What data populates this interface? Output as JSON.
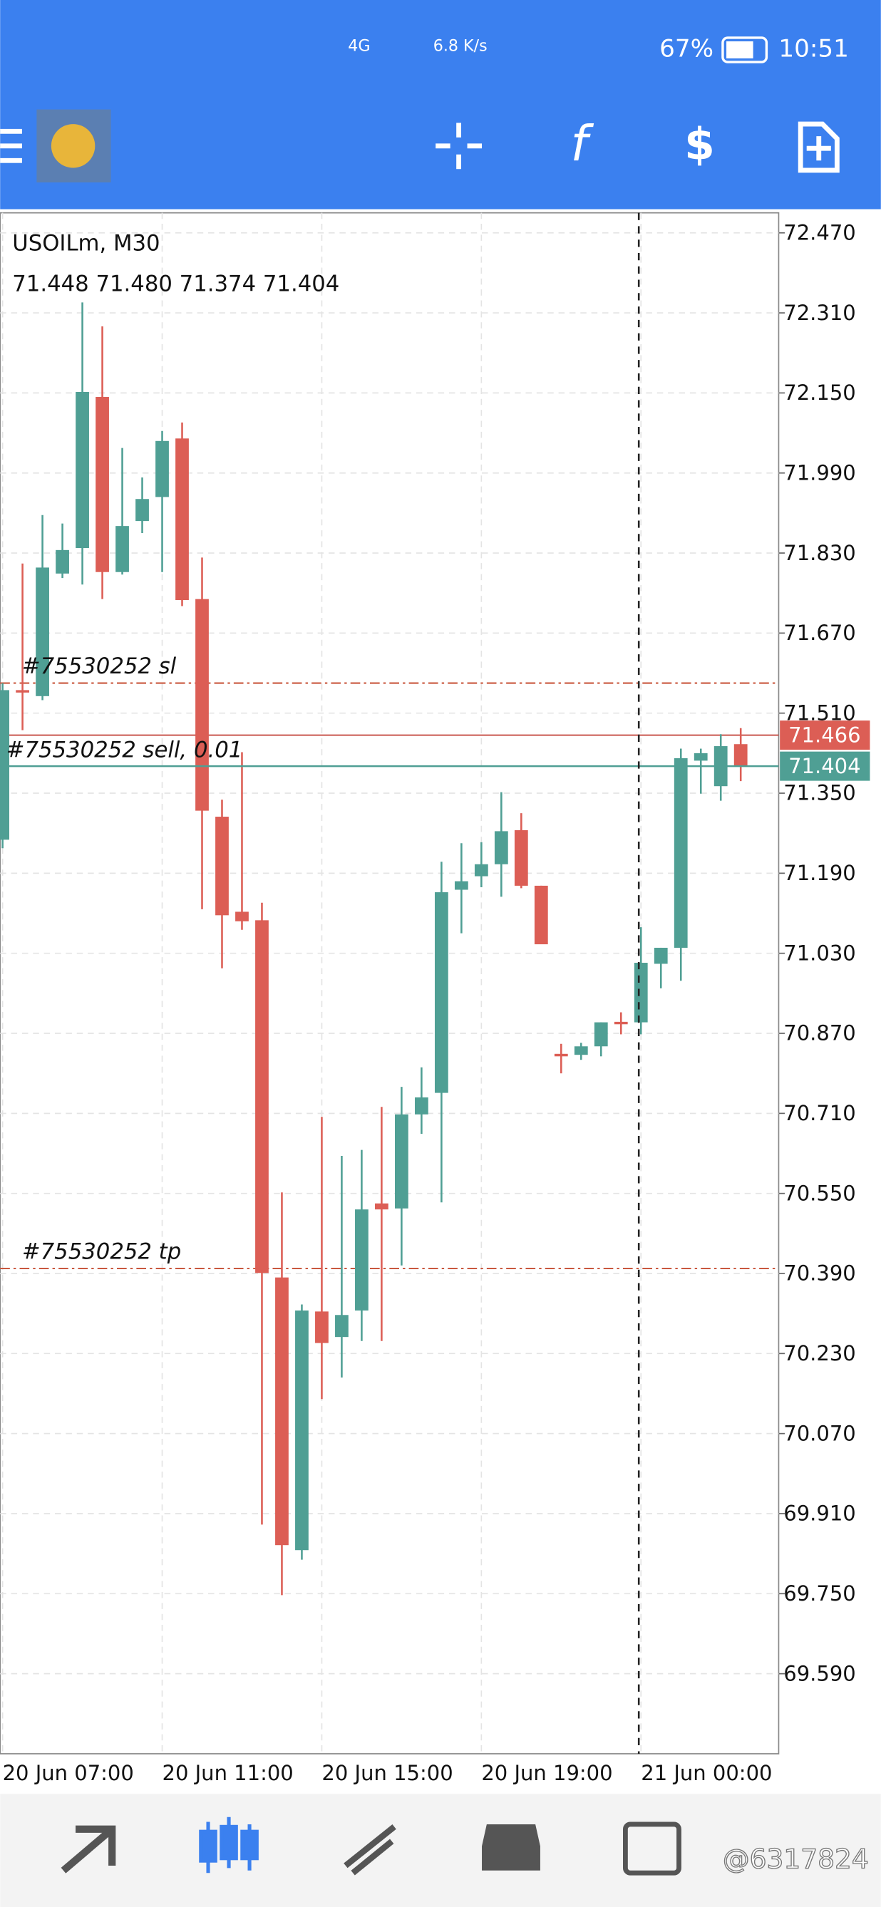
{
  "status_bar": {
    "network": "4G",
    "speed": "6.8 K/s",
    "battery": "67%",
    "time": "10:51"
  },
  "chart_data": {
    "type": "candlestick",
    "title": "USOILm, M30",
    "ohlc_label": [
      "71.448",
      "71.480",
      "71.374",
      "71.404"
    ],
    "categories": [
      "20 Jun 07:00",
      null,
      null,
      null,
      null,
      null,
      null,
      null,
      "20 Jun 11:00",
      null,
      null,
      null,
      null,
      null,
      null,
      null,
      "20 Jun 15:00",
      null,
      null,
      null,
      null,
      null,
      null,
      null,
      "20 Jun 19:00",
      null,
      null,
      null,
      null,
      null,
      null,
      null,
      "21 Jun 00:00",
      null,
      null,
      null,
      null,
      null
    ],
    "open": [
      71.257,
      71.556,
      71.544,
      71.789,
      71.84,
      72.142,
      71.792,
      71.894,
      71.942,
      72.059,
      71.738,
      71.303,
      71.113,
      71.096,
      70.382,
      69.837,
      70.314,
      70.263,
      70.316,
      70.53,
      70.52,
      70.708,
      70.751,
      71.157,
      71.184,
      71.208,
      71.276,
      71.165,
      70.829,
      70.827,
      70.844,
      70.893,
      70.892,
      71.009,
      71.041,
      71.415,
      71.364,
      71.448
    ],
    "high": [
      71.57,
      71.809,
      71.906,
      71.889,
      72.331,
      72.283,
      72.04,
      71.981,
      72.074,
      72.091,
      71.821,
      71.337,
      71.432,
      71.131,
      70.552,
      70.328,
      70.703,
      70.625,
      70.637,
      70.723,
      70.763,
      70.802,
      71.213,
      71.25,
      71.252,
      71.352,
      71.31,
      71.165,
      70.849,
      70.851,
      70.892,
      70.912,
      71.082,
      71.041,
      71.439,
      71.439,
      71.468,
      71.48
    ],
    "low": [
      71.24,
      71.476,
      71.536,
      71.78,
      71.767,
      71.738,
      71.787,
      71.87,
      71.792,
      71.724,
      71.118,
      71.0,
      71.077,
      69.888,
      69.747,
      69.818,
      70.139,
      70.182,
      70.255,
      70.255,
      70.406,
      70.669,
      70.532,
      71.07,
      71.162,
      71.143,
      71.16,
      71.048,
      70.79,
      70.817,
      70.824,
      70.868,
      70.868,
      70.96,
      70.975,
      71.349,
      71.335,
      71.374
    ],
    "close": [
      71.556,
      71.552,
      71.801,
      71.836,
      72.152,
      71.792,
      71.884,
      71.938,
      72.054,
      71.736,
      71.315,
      71.106,
      71.094,
      70.391,
      69.847,
      70.316,
      70.251,
      70.307,
      70.518,
      70.518,
      70.708,
      70.742,
      71.152,
      71.174,
      71.208,
      71.274,
      71.165,
      71.048,
      70.824,
      70.844,
      70.892,
      70.89,
      71.011,
      71.041,
      71.42,
      71.43,
      71.444,
      71.404
    ],
    "up_color": "#4f9f94",
    "down_color": "#dc5e55",
    "ylim": [
      69.43,
      72.51
    ],
    "yticks": [
      {
        "value": 72.47,
        "label": "72.470"
      },
      {
        "value": 72.31,
        "label": "72.310"
      },
      {
        "value": 72.15,
        "label": "72.150"
      },
      {
        "value": 71.99,
        "label": "71.990"
      },
      {
        "value": 71.83,
        "label": "71.830"
      },
      {
        "value": 71.67,
        "label": "71.670"
      },
      {
        "value": 71.51,
        "label": "71.510"
      },
      {
        "value": 71.35,
        "label": "71.350"
      },
      {
        "value": 71.19,
        "label": "71.190"
      },
      {
        "value": 71.03,
        "label": "71.030"
      },
      {
        "value": 70.87,
        "label": "70.870"
      },
      {
        "value": 70.71,
        "label": "70.710"
      },
      {
        "value": 70.55,
        "label": "70.550"
      },
      {
        "value": 70.39,
        "label": "70.390"
      },
      {
        "value": 70.23,
        "label": "70.230"
      },
      {
        "value": 70.07,
        "label": "70.070"
      },
      {
        "value": 69.91,
        "label": "69.910"
      },
      {
        "value": 69.75,
        "label": "69.750"
      },
      {
        "value": 69.59,
        "label": "69.590"
      }
    ],
    "grid": true,
    "order_lines": [
      {
        "label": "#75530252 sl",
        "value": 71.57,
        "color": "#c9583f"
      },
      {
        "label": "#75530252 sell, 0.01",
        "value": 71.466,
        "color": "#c9584f"
      },
      {
        "label": "#75530252 tp",
        "value": 70.4,
        "color": "#c9583f"
      }
    ],
    "price_tags": [
      {
        "value": 71.466,
        "label": "71.466",
        "color": "#dc5e55"
      },
      {
        "value": 71.404,
        "label": "71.404",
        "color": "#4f9f94"
      }
    ]
  },
  "watermark": "@6317824"
}
